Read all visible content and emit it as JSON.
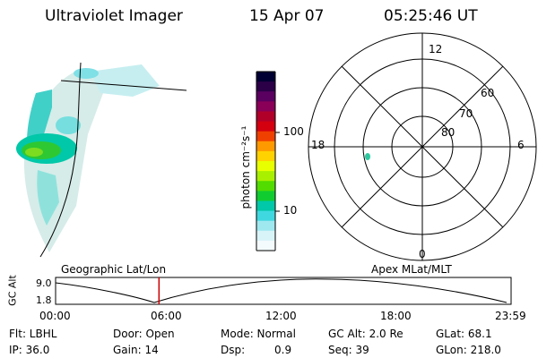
{
  "header": {
    "title": "Ultraviolet Imager",
    "date": "15 Apr 07",
    "time": "05:25:46 UT"
  },
  "colorbar": {
    "unit_label": "photon cm⁻²s⁻¹",
    "ticks": [
      "100",
      "10"
    ],
    "colors": [
      "#000033",
      "#2b0047",
      "#5a0060",
      "#8a0058",
      "#b0002a",
      "#d40010",
      "#f04000",
      "#ff9900",
      "#ffd200",
      "#e8ff00",
      "#a8f000",
      "#52dc00",
      "#10cc30",
      "#00c8a8",
      "#40d8e0",
      "#a0e8f0",
      "#d8f4f8",
      "#f4fbfc"
    ]
  },
  "polar": {
    "mlt_labels": {
      "top": "12",
      "bottom": "0",
      "left": "18",
      "right": "6"
    },
    "lat_labels": [
      "60",
      "70",
      "80"
    ]
  },
  "timeline": {
    "left_label": "Geographic Lat/Lon",
    "right_label": "Apex MLat/MLT",
    "axis_title": "GC Alt",
    "y_top": "9.0",
    "y_bottom": "1.8",
    "x_ticks": [
      "00:00",
      "06:00",
      "12:00",
      "18:00",
      "23:59"
    ],
    "marker_color": "#cc0000",
    "current_time_fraction": 0.227
  },
  "info": {
    "flt": "Flt: LBHL",
    "door": "Door: Open",
    "mode": "Mode: Normal",
    "gc_alt": "GC Alt: 2.0 Re",
    "glat": "GLat:  68.1",
    "ip": "IP: 36.0",
    "gain": "Gain: 14",
    "dsp_label": "Dsp:",
    "dsp_value": "0.9",
    "seq": "Seq: 39",
    "glon": "GLon: 218.0"
  }
}
